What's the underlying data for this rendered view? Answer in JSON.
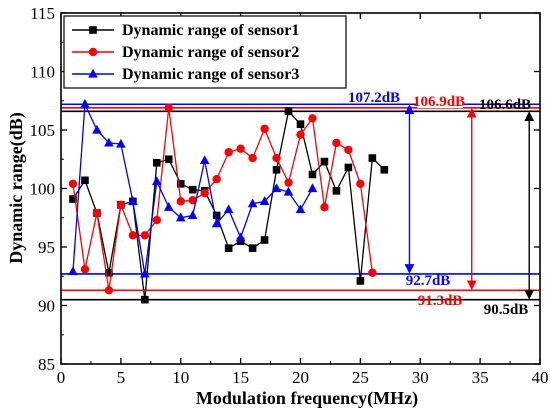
{
  "chart_data": {
    "type": "line",
    "title": "",
    "xlabel": "Modulation frequency(MHz)",
    "ylabel": "Dynamic range(dB)",
    "xlim": [
      0,
      40
    ],
    "ylim": [
      85,
      115
    ],
    "xticks": [
      0,
      5,
      10,
      15,
      20,
      25,
      30,
      35,
      40
    ],
    "yticks": [
      85,
      90,
      95,
      100,
      105,
      110,
      115
    ],
    "grid": false,
    "legend_position": "top-left",
    "series": [
      {
        "name": "Dynamic range of sensor1",
        "color": "#000000",
        "marker": "square",
        "x": [
          1,
          2,
          3,
          4,
          5,
          6,
          7,
          8,
          9,
          10,
          11,
          12,
          13,
          14,
          15,
          16,
          17,
          18,
          19,
          20,
          21,
          22,
          23,
          24,
          25,
          26,
          27
        ],
        "y": [
          99.1,
          100.7,
          97.9,
          92.8,
          98.6,
          98.9,
          90.5,
          102.2,
          102.5,
          100.4,
          99.9,
          99.8,
          97.7,
          94.9,
          95.5,
          94.9,
          95.6,
          101.6,
          106.6,
          105.5,
          101.2,
          102.3,
          99.8,
          101.8,
          92.1,
          102.6,
          101.6
        ]
      },
      {
        "name": "Dynamic range of sensor2",
        "color": "#ff0000",
        "marker": "circle",
        "x": [
          1,
          2,
          3,
          4,
          5,
          6,
          7,
          8,
          9,
          10,
          11,
          12,
          13,
          14,
          15,
          16,
          17,
          18,
          19,
          20,
          21,
          22,
          23,
          24,
          25,
          26
        ],
        "y": [
          100.4,
          93.1,
          97.9,
          91.3,
          98.6,
          96.0,
          96.0,
          97.3,
          106.9,
          98.9,
          99.0,
          99.6,
          100.8,
          103.1,
          103.4,
          102.6,
          105.1,
          102.6,
          100.5,
          104.6,
          106.0,
          98.4,
          103.9,
          103.3,
          100.4,
          92.8
        ]
      },
      {
        "name": "Dynamic range of sensor3",
        "color": "#0000ff",
        "marker": "triangle",
        "x": [
          1,
          2,
          3,
          4,
          5,
          6,
          7,
          8,
          9,
          10,
          11,
          12,
          13,
          14,
          15,
          16,
          17,
          18,
          19,
          20,
          21
        ],
        "y": [
          92.9,
          107.2,
          105.0,
          103.9,
          103.8,
          98.9,
          92.7,
          100.6,
          98.4,
          97.5,
          97.7,
          102.4,
          97.0,
          98.2,
          95.8,
          98.7,
          98.9,
          100.0,
          99.7,
          98.2,
          100.0
        ]
      }
    ],
    "reference_lines": [
      {
        "y": 107.2,
        "color": "#0000ff",
        "label": "107.2dB"
      },
      {
        "y": 106.9,
        "color": "#ff0000",
        "label": "106.9dB"
      },
      {
        "y": 106.6,
        "color": "#000000",
        "label": "106.6dB"
      },
      {
        "y": 92.7,
        "color": "#0000ff",
        "label": "92.7dB"
      },
      {
        "y": 91.3,
        "color": "#ff0000",
        "label": "91.3dB"
      },
      {
        "y": 90.5,
        "color": "#000000",
        "label": "90.5dB"
      }
    ],
    "range_arrows": [
      {
        "x": 29.1,
        "from": 107.2,
        "to": 92.7,
        "color": "#0000ff"
      },
      {
        "x": 34.3,
        "from": 106.9,
        "to": 91.3,
        "color": "#ff0000"
      },
      {
        "x": 39.1,
        "from": 106.6,
        "to": 90.5,
        "color": "#000000"
      }
    ]
  }
}
